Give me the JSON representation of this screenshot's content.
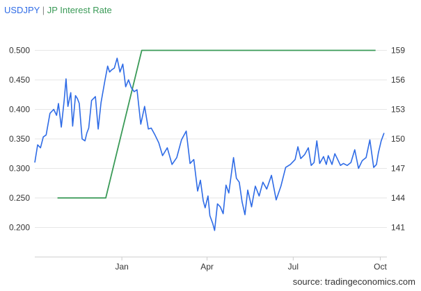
{
  "legend": {
    "series1": "USDJPY",
    "separator": "|",
    "series2": "JP Interest Rate"
  },
  "source": "source: tradingeconomics.com",
  "colors": {
    "usdjpy": "#2e6be6",
    "rate": "#3a9a57",
    "grid": "#e6e6e6",
    "axis": "#cccccc"
  },
  "chart_data": {
    "type": "line",
    "grid": true,
    "legend_position": "top-left",
    "x_ticks": [
      {
        "label": "Jan",
        "day": 92
      },
      {
        "label": "Apr",
        "day": 182
      },
      {
        "label": "Jul",
        "day": 273
      },
      {
        "label": "Oct",
        "day": 365
      }
    ],
    "xlim": [
      0,
      372
    ],
    "left_axis": {
      "ylim": [
        0.15,
        0.55
      ],
      "ticks": [
        0.2,
        0.25,
        0.3,
        0.35,
        0.4,
        0.45,
        0.5
      ],
      "tick_labels": [
        "0.200",
        "0.250",
        "0.300",
        "0.350",
        "0.400",
        "0.450",
        "0.500"
      ]
    },
    "right_axis": {
      "ylim": [
        138,
        162
      ],
      "ticks": [
        141,
        144,
        147,
        150,
        153,
        156,
        159
      ],
      "tick_labels": [
        "141",
        "144",
        "147",
        "150",
        "153",
        "156",
        "159"
      ]
    },
    "series": [
      {
        "name": "USDJPY",
        "axis": "right",
        "x": [
          0,
          3,
          6,
          9,
          12,
          16,
          20,
          23,
          25,
          28,
          31,
          33,
          35,
          38,
          40,
          43,
          45,
          47,
          50,
          53,
          55,
          57,
          60,
          64,
          67,
          70,
          74,
          77,
          79,
          81,
          84,
          87,
          90,
          93,
          96,
          99,
          102,
          105,
          108,
          112,
          116,
          120,
          123,
          127,
          131,
          135,
          140,
          145,
          150,
          155,
          160,
          164,
          168,
          172,
          175,
          178,
          180,
          183,
          185,
          188,
          190,
          193,
          196,
          199,
          202,
          205,
          207,
          210,
          213,
          216,
          219,
          222,
          225,
          229,
          233,
          237,
          241,
          245,
          250,
          255,
          260,
          265,
          270,
          275,
          278,
          281,
          285,
          289,
          292,
          295,
          298,
          301,
          305,
          308,
          310,
          314,
          317,
          320,
          323,
          326,
          330,
          334,
          338,
          342,
          346,
          350,
          354,
          358,
          361,
          363,
          366,
          369
        ],
        "y": [
          147.6,
          149.4,
          149.1,
          150.2,
          150.4,
          152.6,
          153.0,
          152.4,
          153.6,
          151.2,
          153.9,
          156.1,
          153.3,
          154.7,
          151.3,
          154.4,
          154.1,
          153.6,
          150.0,
          149.8,
          150.6,
          151.1,
          153.9,
          154.3,
          151.0,
          153.7,
          155.9,
          157.4,
          156.8,
          157.0,
          157.2,
          158.2,
          156.8,
          157.6,
          155.3,
          156.0,
          155.2,
          154.8,
          155.0,
          151.5,
          153.3,
          151.0,
          151.1,
          150.4,
          149.6,
          148.3,
          149.1,
          147.4,
          148.1,
          149.9,
          150.8,
          147.5,
          147.9,
          144.7,
          145.8,
          143.7,
          143.0,
          144.2,
          142.2,
          141.4,
          140.7,
          143.4,
          143.1,
          142.4,
          145.3,
          144.5,
          146.0,
          148.1,
          146.0,
          145.6,
          143.6,
          142.3,
          144.8,
          143.1,
          145.2,
          144.2,
          145.6,
          144.9,
          146.3,
          143.8,
          145.2,
          147.1,
          147.4,
          147.9,
          149.2,
          148.0,
          148.4,
          149.1,
          147.3,
          147.6,
          149.8,
          147.5,
          148.2,
          147.4,
          148.3,
          147.4,
          148.5,
          147.9,
          147.3,
          147.5,
          147.3,
          147.6,
          148.9,
          147.0,
          147.8,
          148.1,
          149.9,
          147.1,
          147.4,
          148.6,
          149.8,
          150.6
        ]
      },
      {
        "name": "JP Interest Rate",
        "axis": "left",
        "x": [
          24,
          75,
          113,
          360
        ],
        "y": [
          0.25,
          0.25,
          0.5,
          0.5
        ]
      }
    ]
  }
}
